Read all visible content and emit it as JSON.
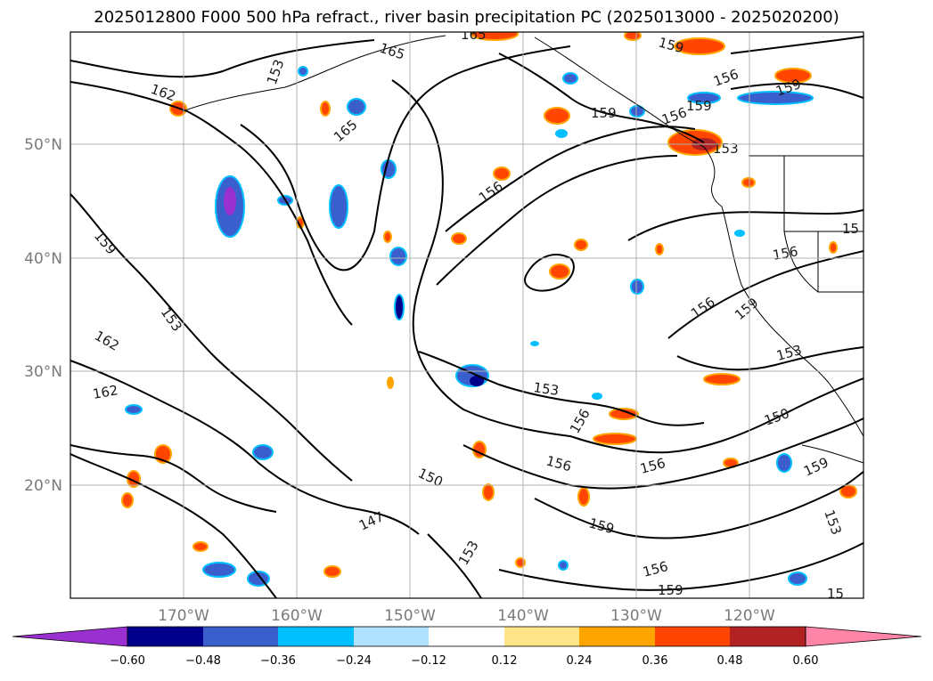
{
  "title": "2025012800 F000 500 hPa refract., river basin precipitation PC (2025013000 - 2025020200)",
  "latitude_labels": [
    "50°N",
    "40°N",
    "30°N",
    "20°N"
  ],
  "longitude_labels": [
    "170°W",
    "160°W",
    "150°W",
    "140°W",
    "130°W",
    "120°W"
  ],
  "colorbar": {
    "ticks": [
      "−0.60",
      "−0.48",
      "−0.36",
      "−0.24",
      "−0.12",
      "0.12",
      "0.24",
      "0.36",
      "0.48",
      "0.60"
    ],
    "colors": [
      "#9b30d0",
      "#00008b",
      "#3a5fcd",
      "#00bfff",
      "#b0e2ff",
      "#ffffff",
      "#ffe58a",
      "#ffa500",
      "#ff4500",
      "#b22222",
      "#ff85a8"
    ]
  },
  "contour_labels": [
    "165",
    "165",
    "165",
    "162",
    "162",
    "162",
    "159",
    "159",
    "159",
    "159",
    "159",
    "159",
    "159",
    "159",
    "159",
    "156",
    "156",
    "156",
    "156",
    "156",
    "156",
    "156",
    "156",
    "156",
    "153",
    "153",
    "153",
    "153",
    "153",
    "153",
    "150",
    "150",
    "147",
    "15",
    "15",
    "153"
  ],
  "map_colors": {
    "contour": "#000000",
    "grid": "#b0b0b0",
    "coast": "#000000"
  }
}
